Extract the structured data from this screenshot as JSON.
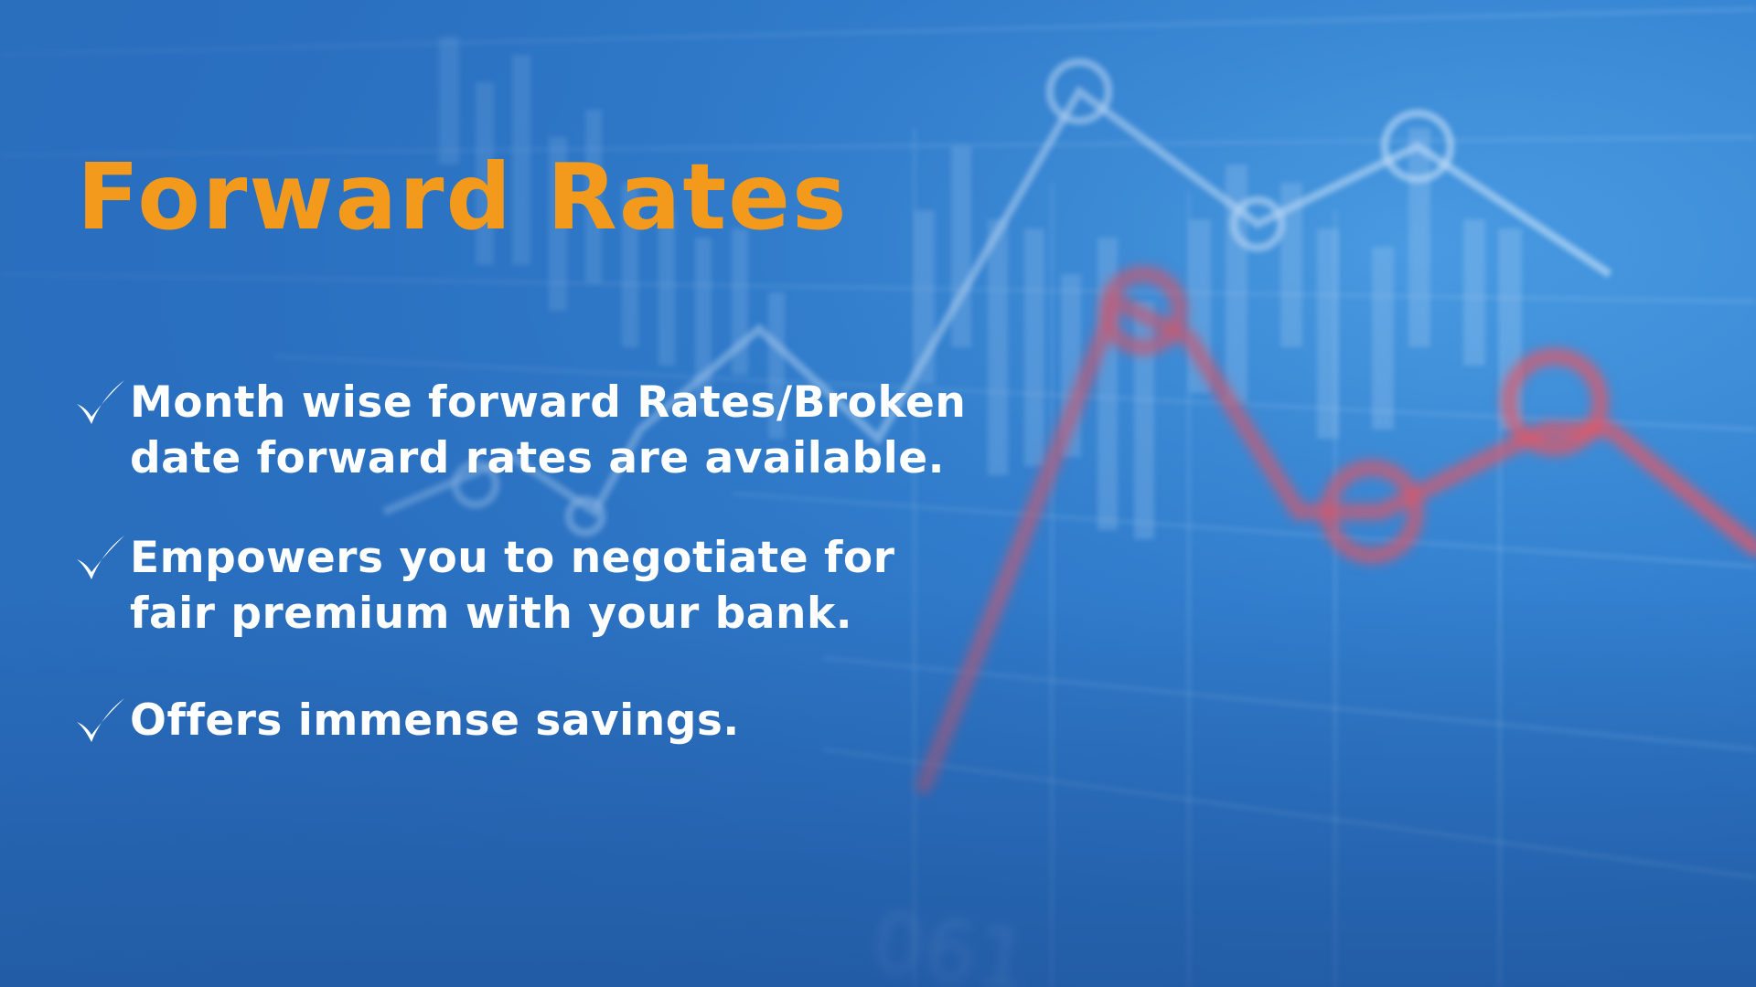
{
  "slide": {
    "title": "Forward Rates",
    "bullets": [
      {
        "lines": [
          "Month wise forward Rates/Broken",
          "date forward rates are available."
        ],
        "icon": "checkmark-icon"
      },
      {
        "lines": [
          "Empowers you to negotiate for",
          "fair premium with your bank."
        ],
        "icon": "checkmark-icon"
      },
      {
        "lines": [
          "Offers immense savings."
        ],
        "icon": "checkmark-icon"
      }
    ],
    "background_text": "061"
  },
  "colors": {
    "title": "#f39a1c",
    "text": "#ffffff",
    "background": "#2a74c2",
    "chart_line": "#ffffff",
    "chart_red": "#e8525c"
  }
}
